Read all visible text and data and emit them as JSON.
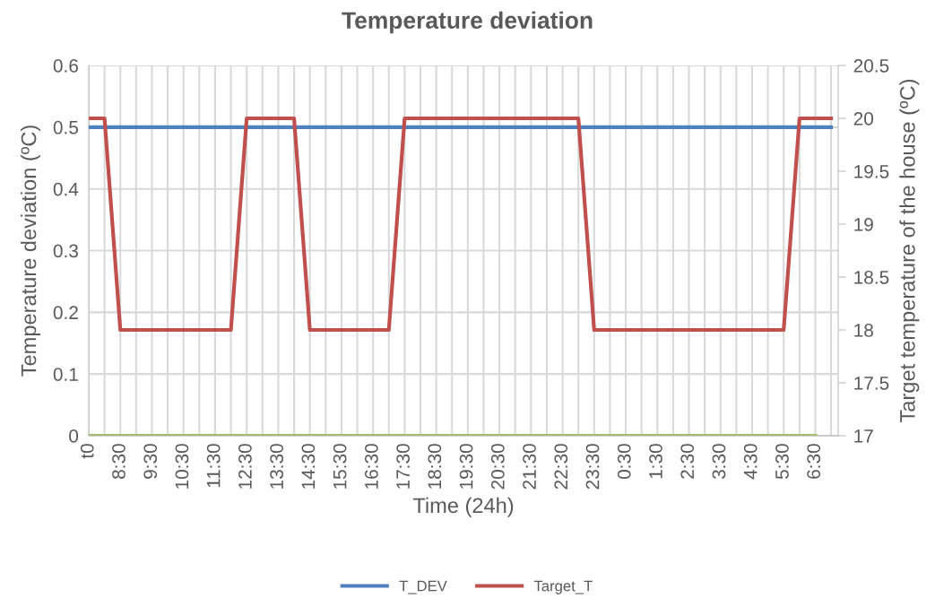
{
  "chart_data": {
    "type": "line",
    "title": "Temperature deviation",
    "xlabel": "Time (24h)",
    "ylabel": "Temperature deviation (ºC)",
    "y2label": "Target temperature of the house (ºC)",
    "categories": [
      "t0",
      null,
      "8:30",
      null,
      "9:30",
      null,
      "10:30",
      null,
      "11:30",
      null,
      "12:30",
      null,
      "13:30",
      null,
      "14:30",
      null,
      "15:30",
      null,
      "16:30",
      null,
      "17:30",
      null,
      "18:30",
      null,
      "19:30",
      null,
      "20:30",
      null,
      "21:30",
      null,
      "22:30",
      null,
      "23:30",
      null,
      "0:30",
      null,
      "1:30",
      null,
      "2:30",
      null,
      "3:30",
      null,
      "4:30",
      null,
      "5:30",
      null,
      "6:30",
      null
    ],
    "series": [
      {
        "name": "T_DEV",
        "color": "#4f81bd",
        "values": [
          0.5,
          0.5,
          0.5,
          0.5,
          0.5,
          0.5,
          0.5,
          0.5,
          0.5,
          0.5,
          0.5,
          0.5,
          0.5,
          0.5,
          0.5,
          0.5,
          0.5,
          0.5,
          0.5,
          0.5,
          0.5,
          0.5,
          0.5,
          0.5,
          0.5,
          0.5,
          0.5,
          0.5,
          0.5,
          0.5,
          0.5,
          0.5,
          0.5,
          0.5,
          0.5,
          0.5,
          0.5,
          0.5,
          0.5,
          0.5,
          0.5,
          0.5,
          0.5,
          0.5,
          0.5,
          0.5,
          0.5,
          0.5
        ]
      },
      {
        "name": "Target_T",
        "color": "#c0504d",
        "axis": "y2",
        "values": [
          20,
          20,
          18,
          18,
          18,
          18,
          18,
          18,
          18,
          18,
          20,
          20,
          20,
          20,
          18,
          18,
          18,
          18,
          18,
          18,
          20,
          20,
          20,
          20,
          20,
          20,
          20,
          20,
          20,
          20,
          20,
          20,
          18,
          18,
          18,
          18,
          18,
          18,
          18,
          18,
          18,
          18,
          18,
          18,
          18,
          20,
          20,
          20
        ]
      },
      {
        "color": "#9bbb59",
        "values": [
          0,
          0,
          0,
          0,
          0,
          0,
          0,
          0,
          0,
          0,
          0,
          0,
          0,
          0,
          0,
          0,
          0,
          0,
          0,
          0,
          0,
          0,
          0,
          0,
          0,
          0,
          0,
          0,
          0,
          0,
          0,
          0,
          0,
          0,
          0,
          0,
          0,
          0,
          0,
          0,
          0,
          0,
          0,
          0,
          0,
          0,
          0,
          null
        ]
      }
    ],
    "ylim": [
      0,
      0.6
    ],
    "yticks": [
      0,
      0.1,
      0.2,
      0.3,
      0.4,
      0.5,
      0.6
    ],
    "y2lim": [
      17,
      20.5
    ],
    "y2ticks": [
      17,
      17.5,
      18,
      18.5,
      19,
      19.5,
      20,
      20.5
    ],
    "grid": true,
    "legend": "bottom",
    "marker": "none",
    "line_style": "solid"
  }
}
